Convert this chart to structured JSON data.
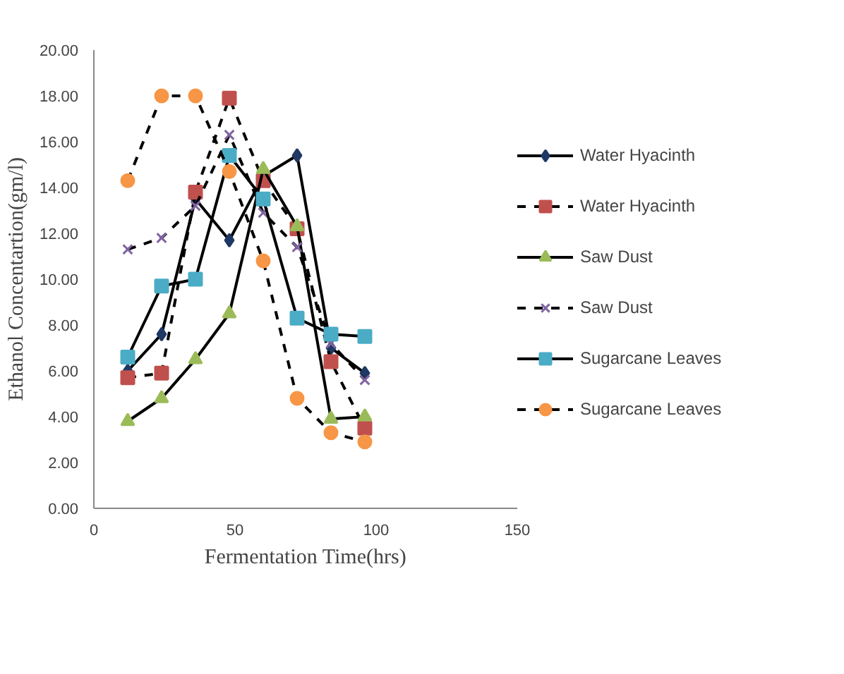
{
  "chart_data": {
    "type": "line",
    "xlabel": "Fermentation Time(hrs)",
    "ylabel": "Ethanol Concentartion(gm/l)",
    "x": [
      12,
      24,
      36,
      48,
      60,
      72,
      84,
      96
    ],
    "series": [
      {
        "name": "Water Hyacinth",
        "color": "#1f3864",
        "marker": "diamond",
        "line_style": "solid",
        "values": [
          6.0,
          7.6,
          13.5,
          11.7,
          14.5,
          15.4,
          7.0,
          5.9
        ]
      },
      {
        "name": "Water Hyacinth",
        "color": "#c0504d",
        "marker": "square",
        "line_style": "dashed",
        "values": [
          5.7,
          5.9,
          13.8,
          17.9,
          14.3,
          12.2,
          6.4,
          3.5
        ]
      },
      {
        "name": "Saw Dust",
        "color": "#9bbb59",
        "marker": "triangle",
        "line_style": "solid",
        "values": [
          3.8,
          4.8,
          6.5,
          8.5,
          14.8,
          12.3,
          3.9,
          4.0
        ]
      },
      {
        "name": "Saw Dust",
        "color": "#8064a2",
        "marker": "cross",
        "line_style": "dashed",
        "values": [
          11.3,
          11.8,
          13.2,
          16.3,
          12.9,
          11.4,
          7.2,
          5.6
        ]
      },
      {
        "name": "Sugarcane Leaves",
        "color": "#4bacc6",
        "marker": "square",
        "line_style": "solid",
        "values": [
          6.6,
          9.7,
          10.0,
          15.4,
          13.5,
          8.3,
          7.6,
          7.5
        ]
      },
      {
        "name": "Sugarcane Leaves",
        "color": "#f79646",
        "marker": "circle",
        "line_style": "dashed",
        "values": [
          14.3,
          18.0,
          18.0,
          14.7,
          10.8,
          4.8,
          3.3,
          2.9
        ]
      }
    ],
    "xlim": [
      0,
      150
    ],
    "xticks": [
      0,
      50,
      100,
      150
    ],
    "ylim": [
      0,
      20
    ],
    "yticks": [
      {
        "value": 0,
        "label": "0.00"
      },
      {
        "value": 2,
        "label": "2.00"
      },
      {
        "value": 4,
        "label": "4.00"
      },
      {
        "value": 6,
        "label": "6.00"
      },
      {
        "value": 8,
        "label": "8.00"
      },
      {
        "value": 10,
        "label": "10.00"
      },
      {
        "value": 12,
        "label": "12.00"
      },
      {
        "value": 14,
        "label": "14.00"
      },
      {
        "value": 16,
        "label": "16.00"
      },
      {
        "value": 18,
        "label": "18.00"
      },
      {
        "value": 20,
        "label": "20.00"
      }
    ],
    "grid": false,
    "legend": "right"
  }
}
